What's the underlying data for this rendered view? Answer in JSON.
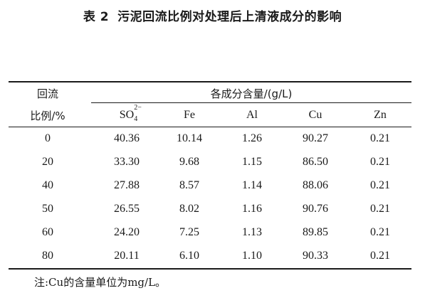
{
  "caption": {
    "number": "表 2",
    "title": "污泥回流比例对处理后上清液成分的影响"
  },
  "header": {
    "row_label_line1": "回流",
    "row_label_line2": "比例/%",
    "group_label": "各成分含量/(g/L)",
    "columns": [
      {
        "base": "SO",
        "sub": "4",
        "sup": "2−"
      },
      {
        "label": "Fe"
      },
      {
        "label": "Al"
      },
      {
        "label": "Cu"
      },
      {
        "label": "Zn"
      }
    ]
  },
  "rows": [
    {
      "ratio": "0",
      "values": [
        "40.36",
        "10.14",
        "1.26",
        "90.27",
        "0.21"
      ]
    },
    {
      "ratio": "20",
      "values": [
        "33.30",
        "9.68",
        "1.15",
        "86.50",
        "0.21"
      ]
    },
    {
      "ratio": "40",
      "values": [
        "27.88",
        "8.57",
        "1.14",
        "88.06",
        "0.21"
      ]
    },
    {
      "ratio": "50",
      "values": [
        "26.55",
        "8.02",
        "1.16",
        "90.76",
        "0.21"
      ]
    },
    {
      "ratio": "60",
      "values": [
        "24.20",
        "7.25",
        "1.13",
        "89.85",
        "0.21"
      ]
    },
    {
      "ratio": "80",
      "values": [
        "20.11",
        "6.10",
        "1.10",
        "90.33",
        "0.21"
      ]
    }
  ],
  "note": "注:Cu的含量单位为mg/L。"
}
